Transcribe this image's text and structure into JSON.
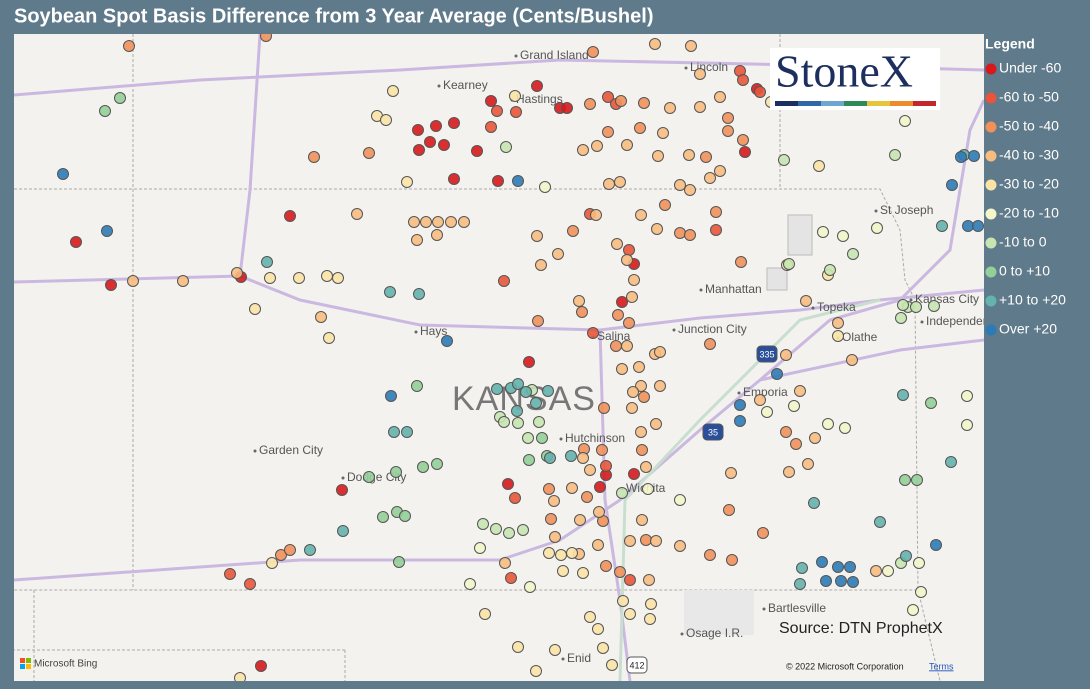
{
  "title": "Soybean Spot Basis Difference from 3 Year Average (Cents/Bushel)",
  "legend": {
    "title": "Legend",
    "items": [
      {
        "label": "Under -60",
        "color": "#d7191c"
      },
      {
        "label": "-60 to -50",
        "color": "#e8553a"
      },
      {
        "label": "-50 to -40",
        "color": "#f0915a"
      },
      {
        "label": "-40 to -30",
        "color": "#f7bd80"
      },
      {
        "label": "-30 to -20",
        "color": "#fbe3a6"
      },
      {
        "label": "-20 to -10",
        "color": "#f3f6c8"
      },
      {
        "label": "-10 to 0",
        "color": "#c7e5b0"
      },
      {
        "label": "0 to +10",
        "color": "#94cf98"
      },
      {
        "label": "+10 to +20",
        "color": "#64b3ad"
      },
      {
        "label": "Over +20",
        "color": "#2c7bb6"
      }
    ]
  },
  "map": {
    "state": "KANSAS",
    "places": [
      "Grand Island",
      "Kearney",
      "Hastings",
      "Lincoln",
      "St Joseph",
      "Manhattan",
      "Topeka",
      "Kansas City",
      "Independence",
      "Hays",
      "Salina",
      "Junction City",
      "Olathe",
      "Emporia",
      "Garden City",
      "Dodge City",
      "Hutchinson",
      "Wichita",
      "Bartlesville",
      "Osage I.R.",
      "Enid"
    ],
    "shields": [
      "335",
      "35",
      "412"
    ]
  },
  "logo": "StoneX",
  "source": "Source: DTN ProphetX",
  "attribution": {
    "bing": "Microsoft Bing",
    "copyright": "© 2022 Microsoft Corporation",
    "terms": "Terms"
  }
}
